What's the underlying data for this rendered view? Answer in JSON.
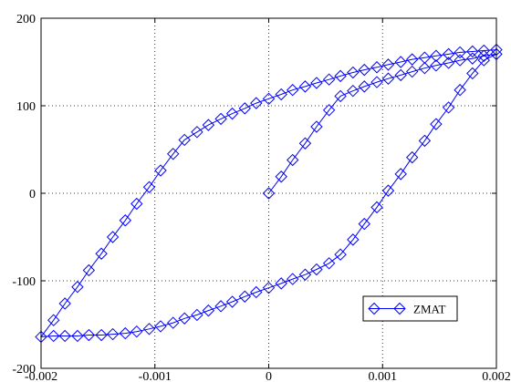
{
  "chart_data": {
    "type": "line",
    "title": "",
    "xlabel": "",
    "ylabel": "",
    "xlim": [
      -0.002,
      0.002
    ],
    "ylim": [
      -200,
      200
    ],
    "xticks": [
      -0.002,
      -0.001,
      0,
      0.001,
      0.002
    ],
    "xtick_labels": [
      "-0.002",
      "-0.001",
      "0",
      "0.001",
      "0.002"
    ],
    "yticks": [
      -200,
      -100,
      0,
      100,
      200
    ],
    "ytick_labels": [
      "-200",
      "-100",
      "0",
      "100",
      "200"
    ],
    "grid": true,
    "grid_style": "dotted",
    "legend_position": "bottom-right",
    "series": [
      {
        "name": "ZMAT",
        "color": "#0000ff",
        "marker": "diamond-open",
        "x": [
          0,
          0.00011,
          0.00021,
          0.00032,
          0.00042,
          0.00053,
          0.00063,
          0.00074,
          0.00084,
          0.00095,
          0.00105,
          0.00116,
          0.00126,
          0.00137,
          0.00147,
          0.00158,
          0.00168,
          0.00179,
          0.00189,
          0.002,
          0.00189,
          0.00179,
          0.00168,
          0.00158,
          0.00147,
          0.00137,
          0.00126,
          0.00116,
          0.00105,
          0.00095,
          0.00084,
          0.00074,
          0.00063,
          0.00053,
          0.00042,
          0.00032,
          0.00021,
          0.00011,
          0,
          -0.00011,
          -0.00021,
          -0.00032,
          -0.00042,
          -0.00053,
          -0.00063,
          -0.00074,
          -0.00084,
          -0.00095,
          -0.00105,
          -0.00116,
          -0.00126,
          -0.00137,
          -0.00147,
          -0.00158,
          -0.00168,
          -0.00179,
          -0.00189,
          -0.002,
          -0.00189,
          -0.00179,
          -0.00168,
          -0.00158,
          -0.00147,
          -0.00137,
          -0.00126,
          -0.00116,
          -0.00105,
          -0.00095,
          -0.00084,
          -0.00074,
          -0.00063,
          -0.00053,
          -0.00042,
          -0.00032,
          -0.00021,
          -0.00011,
          0,
          0.00011,
          0.00021,
          0.00032,
          0.00042,
          0.00053,
          0.00063,
          0.00074,
          0.00084,
          0.00095,
          0.00105,
          0.00116,
          0.00126,
          0.00137,
          0.00147,
          0.00158,
          0.00168,
          0.00179,
          0.00189,
          0.002
        ],
        "y": [
          0,
          19,
          38,
          57,
          76,
          95,
          111,
          117,
          122,
          127,
          131,
          135,
          139,
          143,
          146,
          149,
          152,
          154,
          157,
          159,
          152,
          137,
          118,
          98,
          79,
          60,
          41,
          22,
          3,
          -16,
          -35,
          -53,
          -70,
          -80,
          -87,
          -93,
          -98,
          -103,
          -108,
          -113,
          -118,
          -124,
          -129,
          -134,
          -139,
          -143,
          -148,
          -152,
          -155,
          -158,
          -160,
          -161,
          -162,
          -162,
          -163,
          -163,
          -163,
          -164,
          -145,
          -126,
          -107,
          -88,
          -69,
          -50,
          -31,
          -12,
          7,
          26,
          45,
          61,
          70,
          78,
          85,
          91,
          97,
          103,
          108,
          113,
          118,
          122,
          126,
          130,
          134,
          138,
          141,
          144,
          147,
          150,
          153,
          155,
          157,
          159,
          161,
          162,
          163,
          164
        ]
      }
    ]
  }
}
